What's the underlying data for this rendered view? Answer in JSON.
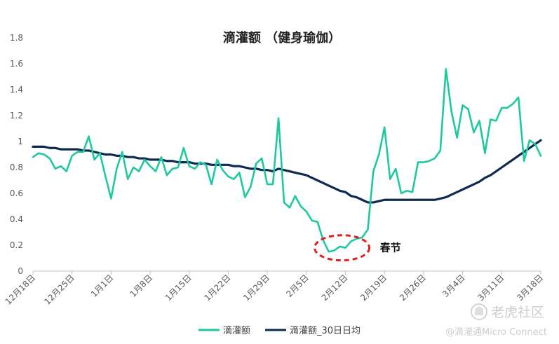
{
  "chart_data": {
    "type": "line",
    "title": "滴灌额 （健身瑜伽）",
    "xlabel": "",
    "ylabel": "",
    "ylim": [
      0,
      1.8
    ],
    "yticks": [
      "0",
      "0.2",
      "0.4",
      "0.6",
      "0.8",
      "1",
      "1.2",
      "1.4",
      "1.6",
      "1.8"
    ],
    "xtick_labels": [
      "12月18日",
      "12月25日",
      "1月1日",
      "1月8日",
      "1月15日",
      "1月22日",
      "1月29日",
      "2月5日",
      "2月12日",
      "2月19日",
      "2月26日",
      "3月4日",
      "3月11日",
      "3月18日"
    ],
    "grid": false,
    "legend_position": "bottom",
    "colors": {
      "series1": "#1fc9a0",
      "series2": "#0d2b52",
      "annotation": "#e0201f"
    },
    "series": [
      {
        "name": "滴灌额",
        "values": [
          0.88,
          0.91,
          0.9,
          0.87,
          0.79,
          0.81,
          0.77,
          0.89,
          0.92,
          0.92,
          1.04,
          0.86,
          0.91,
          0.73,
          0.56,
          0.79,
          0.92,
          0.71,
          0.8,
          0.77,
          0.86,
          0.81,
          0.77,
          0.88,
          0.74,
          0.79,
          0.8,
          0.95,
          0.81,
          0.79,
          0.84,
          0.82,
          0.67,
          0.86,
          0.78,
          0.73,
          0.71,
          0.76,
          0.57,
          0.65,
          0.83,
          0.87,
          0.67,
          0.67,
          1.18,
          0.53,
          0.49,
          0.58,
          0.5,
          0.46,
          0.39,
          0.38,
          0.24,
          0.15,
          0.16,
          0.19,
          0.18,
          0.23,
          0.25,
          0.26,
          0.32,
          0.77,
          0.9,
          1.11,
          0.71,
          0.79,
          0.6,
          0.62,
          0.61,
          0.84,
          0.84,
          0.85,
          0.87,
          0.93,
          1.56,
          1.23,
          1.03,
          1.28,
          1.25,
          1.07,
          1.16,
          0.91,
          1.17,
          1.16,
          1.26,
          1.26,
          1.29,
          1.34,
          0.85,
          1.01,
          0.98,
          0.89
        ]
      },
      {
        "name": "滴灌额_30日日均",
        "values": [
          0.96,
          0.96,
          0.96,
          0.95,
          0.95,
          0.94,
          0.94,
          0.94,
          0.94,
          0.93,
          0.93,
          0.92,
          0.91,
          0.9,
          0.9,
          0.89,
          0.89,
          0.88,
          0.88,
          0.87,
          0.87,
          0.86,
          0.86,
          0.86,
          0.85,
          0.85,
          0.84,
          0.84,
          0.84,
          0.83,
          0.83,
          0.83,
          0.82,
          0.82,
          0.82,
          0.82,
          0.81,
          0.81,
          0.8,
          0.79,
          0.79,
          0.78,
          0.78,
          0.77,
          0.79,
          0.78,
          0.77,
          0.76,
          0.75,
          0.74,
          0.72,
          0.7,
          0.68,
          0.66,
          0.64,
          0.62,
          0.61,
          0.58,
          0.57,
          0.55,
          0.53,
          0.53,
          0.54,
          0.55,
          0.55,
          0.55,
          0.55,
          0.55,
          0.55,
          0.55,
          0.55,
          0.55,
          0.55,
          0.56,
          0.57,
          0.59,
          0.61,
          0.63,
          0.65,
          0.67,
          0.69,
          0.72,
          0.74,
          0.77,
          0.8,
          0.83,
          0.86,
          0.89,
          0.92,
          0.95,
          0.98,
          1.01
        ]
      }
    ],
    "annotations": [
      {
        "text": "春节",
        "marker": "dashed-ellipse",
        "x_index": 55,
        "y": 0.18
      }
    ]
  },
  "watermark": {
    "brand": "老虎社区",
    "source": "@滴灌通Micro Connect",
    "icon": "tiger-logo-icon"
  }
}
